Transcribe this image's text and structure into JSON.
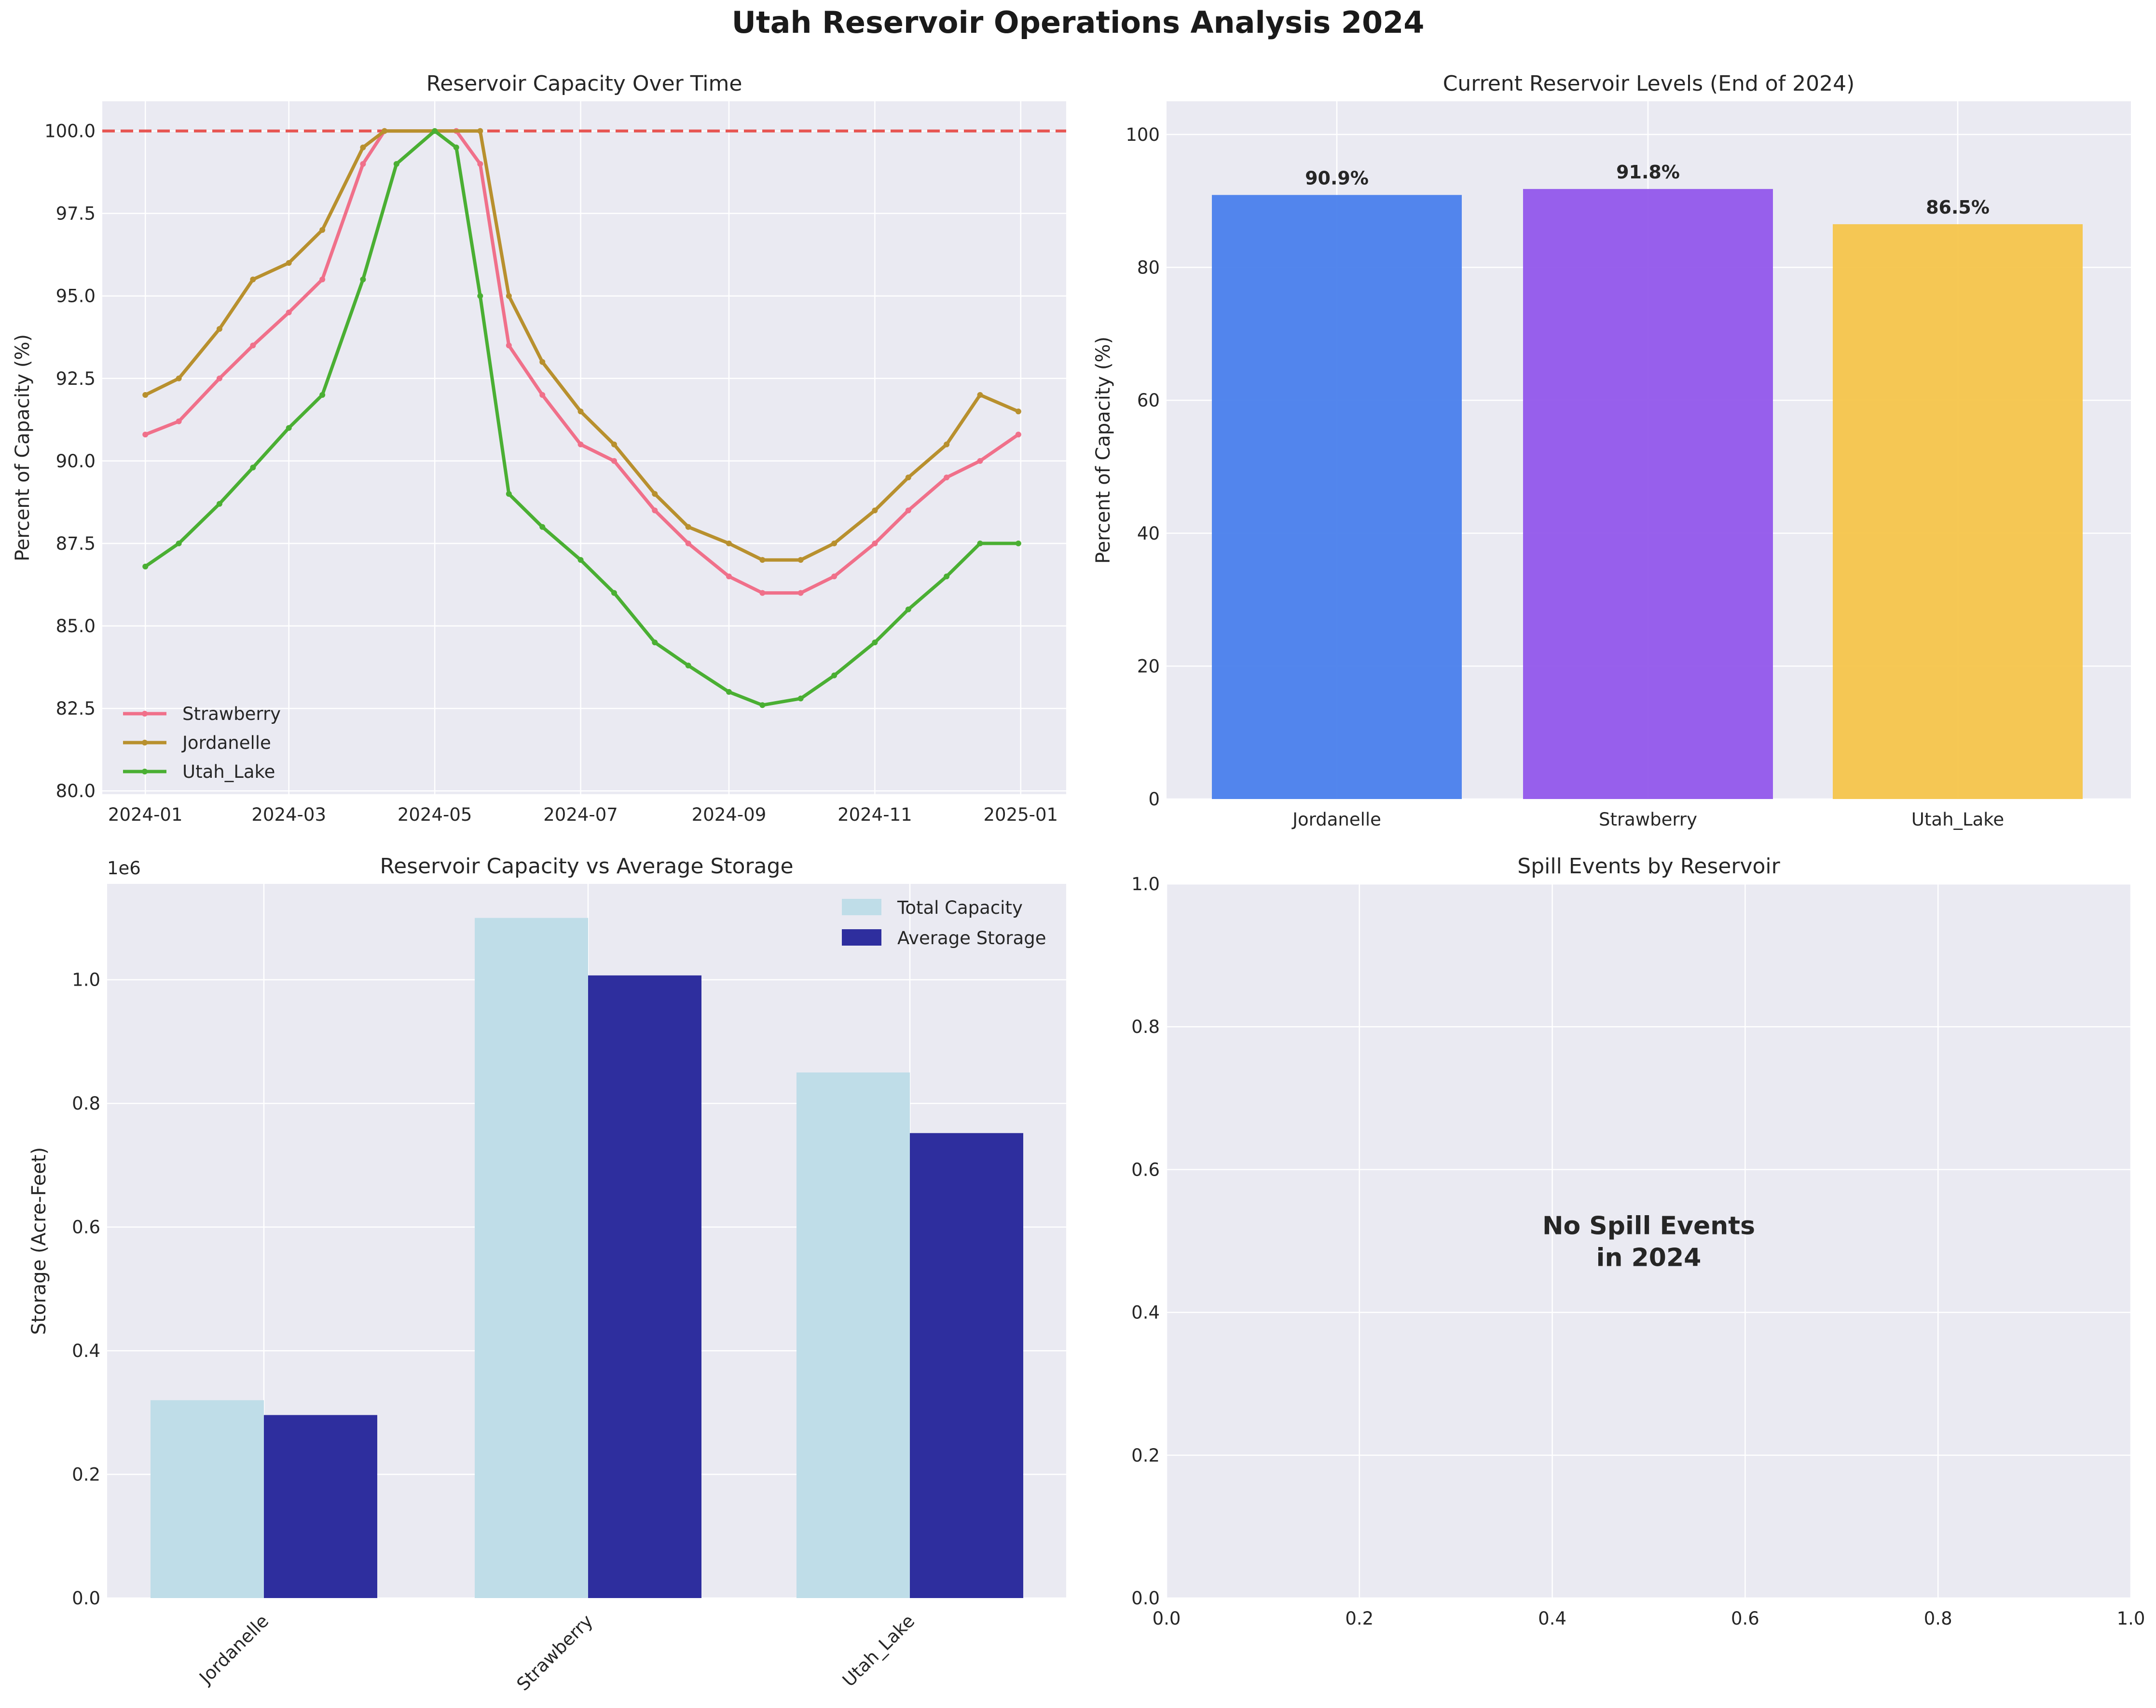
{
  "figure": {
    "title": "Utah Reservoir Operations Analysis 2024"
  },
  "colors": {
    "axes_bg": "#eaeaf2",
    "grid": "#ffffff",
    "strawberry_line": "#f0708a",
    "jordanelle_line": "#b8902e",
    "utah_lake_line": "#4aaf33",
    "full_line": "#e53935",
    "bar_jordanelle": "#4a7fec",
    "bar_strawberry": "#9257eb",
    "bar_utah_lake": "#f6c54b",
    "total_capacity": "#bfdde8",
    "average_storage": "#2e2e9e"
  },
  "chart_data": [
    {
      "id": "capacity_over_time",
      "type": "line",
      "title": "Reservoir Capacity Over Time",
      "xlabel": "",
      "ylabel": "Percent of Capacity (%)",
      "xlim": [
        "2023-12-14",
        "2025-01-20"
      ],
      "ylim": [
        79.9,
        100.9
      ],
      "x_ticks": [
        "2024-01",
        "2024-03",
        "2024-05",
        "2024-07",
        "2024-09",
        "2024-11",
        "2025-01"
      ],
      "y_ticks": [
        80.0,
        82.5,
        85.0,
        87.5,
        90.0,
        92.5,
        95.0,
        97.5,
        100.0
      ],
      "reference_line": {
        "y": 100,
        "style": "dashed",
        "color": "#e53935"
      },
      "legend_position": "lower-left",
      "grid": true,
      "series": [
        {
          "name": "Strawberry",
          "color": "#f0708a",
          "points": [
            [
              "2024-01-01",
              90.8
            ],
            [
              "2024-01-15",
              91.2
            ],
            [
              "2024-02-01",
              92.5
            ],
            [
              "2024-02-15",
              93.5
            ],
            [
              "2024-03-01",
              94.5
            ],
            [
              "2024-03-15",
              95.5
            ],
            [
              "2024-04-01",
              99.0
            ],
            [
              "2024-04-10",
              100.0
            ],
            [
              "2024-05-10",
              100.0
            ],
            [
              "2024-05-20",
              99.0
            ],
            [
              "2024-06-01",
              93.5
            ],
            [
              "2024-06-15",
              92.0
            ],
            [
              "2024-07-01",
              90.5
            ],
            [
              "2024-07-15",
              90.0
            ],
            [
              "2024-08-01",
              88.5
            ],
            [
              "2024-08-15",
              87.5
            ],
            [
              "2024-09-01",
              86.5
            ],
            [
              "2024-09-15",
              86.0
            ],
            [
              "2024-10-01",
              86.0
            ],
            [
              "2024-10-15",
              86.5
            ],
            [
              "2024-11-01",
              87.5
            ],
            [
              "2024-11-15",
              88.5
            ],
            [
              "2024-12-01",
              89.5
            ],
            [
              "2024-12-15",
              90.0
            ],
            [
              "2024-12-31",
              90.8
            ]
          ]
        },
        {
          "name": "Jordanelle",
          "color": "#b8902e",
          "points": [
            [
              "2024-01-01",
              92.0
            ],
            [
              "2024-01-15",
              92.5
            ],
            [
              "2024-02-01",
              94.0
            ],
            [
              "2024-02-15",
              95.5
            ],
            [
              "2024-03-01",
              96.0
            ],
            [
              "2024-03-15",
              97.0
            ],
            [
              "2024-04-01",
              99.5
            ],
            [
              "2024-04-10",
              100.0
            ],
            [
              "2024-05-20",
              100.0
            ],
            [
              "2024-06-01",
              95.0
            ],
            [
              "2024-06-15",
              93.0
            ],
            [
              "2024-07-01",
              91.5
            ],
            [
              "2024-07-15",
              90.5
            ],
            [
              "2024-08-01",
              89.0
            ],
            [
              "2024-08-15",
              88.0
            ],
            [
              "2024-09-01",
              87.5
            ],
            [
              "2024-09-15",
              87.0
            ],
            [
              "2024-10-01",
              87.0
            ],
            [
              "2024-10-15",
              87.5
            ],
            [
              "2024-11-01",
              88.5
            ],
            [
              "2024-11-15",
              89.5
            ],
            [
              "2024-12-01",
              90.5
            ],
            [
              "2024-12-15",
              92.0
            ],
            [
              "2024-12-31",
              91.5
            ]
          ]
        },
        {
          "name": "Utah_Lake",
          "color": "#4aaf33",
          "points": [
            [
              "2024-01-01",
              86.8
            ],
            [
              "2024-01-15",
              87.5
            ],
            [
              "2024-02-01",
              88.7
            ],
            [
              "2024-02-15",
              89.8
            ],
            [
              "2024-03-01",
              91.0
            ],
            [
              "2024-03-15",
              92.0
            ],
            [
              "2024-04-01",
              95.5
            ],
            [
              "2024-04-15",
              99.0
            ],
            [
              "2024-05-01",
              100.0
            ],
            [
              "2024-05-10",
              99.5
            ],
            [
              "2024-05-20",
              95.0
            ],
            [
              "2024-06-01",
              89.0
            ],
            [
              "2024-06-15",
              88.0
            ],
            [
              "2024-07-01",
              87.0
            ],
            [
              "2024-07-15",
              86.0
            ],
            [
              "2024-08-01",
              84.5
            ],
            [
              "2024-08-15",
              83.8
            ],
            [
              "2024-09-01",
              83.0
            ],
            [
              "2024-09-15",
              82.6
            ],
            [
              "2024-10-01",
              82.8
            ],
            [
              "2024-10-15",
              83.5
            ],
            [
              "2024-11-01",
              84.5
            ],
            [
              "2024-11-15",
              85.5
            ],
            [
              "2024-12-01",
              86.5
            ],
            [
              "2024-12-15",
              87.5
            ],
            [
              "2024-12-31",
              87.5
            ]
          ]
        }
      ]
    },
    {
      "id": "current_levels",
      "type": "bar",
      "title": "Current Reservoir Levels (End of 2024)",
      "xlabel": "",
      "ylabel": "Percent of Capacity (%)",
      "ylim": [
        0,
        105
      ],
      "y_ticks": [
        0,
        20,
        40,
        60,
        80,
        100
      ],
      "categories": [
        "Jordanelle",
        "Strawberry",
        "Utah_Lake"
      ],
      "values": [
        90.9,
        91.8,
        86.5
      ],
      "value_labels": [
        "90.9%",
        "91.8%",
        "86.5%"
      ],
      "grid": true
    },
    {
      "id": "capacity_vs_storage",
      "type": "bar",
      "title": "Reservoir Capacity vs Average Storage",
      "xlabel": "",
      "ylabel": "Storage (Acre-Feet)",
      "offset_label": "1e6",
      "ylim": [
        0,
        1155000
      ],
      "y_ticks": [
        0,
        200000,
        400000,
        600000,
        800000,
        1000000
      ],
      "y_tick_labels": [
        "0.0",
        "0.2",
        "0.4",
        "0.6",
        "0.8",
        "1.0"
      ],
      "categories": [
        "Jordanelle",
        "Strawberry",
        "Utah_Lake"
      ],
      "legend_position": "top-right",
      "grid": true,
      "series": [
        {
          "name": "Total Capacity",
          "color": "#bfdde8",
          "values": [
            320000,
            1100000,
            850000
          ]
        },
        {
          "name": "Average Storage",
          "color": "#2e2e9e",
          "values": [
            296000,
            1007000,
            752000
          ]
        }
      ]
    },
    {
      "id": "spill_events",
      "type": "bar",
      "title": "Spill Events by Reservoir",
      "xlabel": "",
      "ylabel": "",
      "xlim": [
        0,
        1
      ],
      "ylim": [
        0,
        1
      ],
      "x_ticks": [
        0.0,
        0.2,
        0.4,
        0.6,
        0.8,
        1.0
      ],
      "y_ticks": [
        0.0,
        0.2,
        0.4,
        0.6,
        0.8,
        1.0
      ],
      "annotation_lines": [
        "No Spill Events",
        "in 2024"
      ],
      "grid": true
    }
  ]
}
